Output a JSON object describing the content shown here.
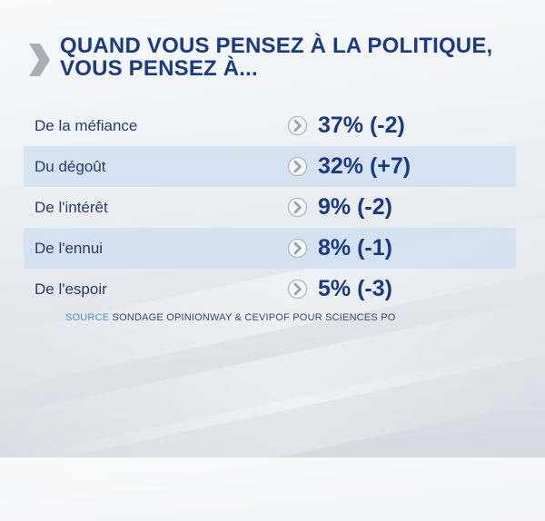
{
  "title": {
    "line1": "QUAND VOUS PENSEZ À LA POLITIQUE,",
    "line2": "VOUS PENSEZ À..."
  },
  "chart_data": {
    "type": "table",
    "title": "QUAND VOUS PENSEZ À LA POLITIQUE, VOUS PENSEZ À...",
    "categories": [
      "De la méfiance",
      "Du dégoût",
      "De l'intérêt",
      "De l'ennui",
      "De l'espoir"
    ],
    "values": [
      37,
      32,
      9,
      8,
      5
    ],
    "changes": [
      -2,
      7,
      -2,
      -1,
      -3
    ],
    "unit": "%",
    "rows": [
      {
        "label": "De la méfiance",
        "display": "37% (-2)"
      },
      {
        "label": "Du dégoût",
        "display": "32% (+7)"
      },
      {
        "label": "De l'intérêt",
        "display": "9% (-2)"
      },
      {
        "label": "De l'ennui",
        "display": "8% (-1)"
      },
      {
        "label": "De l'espoir",
        "display": "5% (-3)"
      }
    ]
  },
  "source": {
    "key": "SOURCE",
    "text": "SONDAGE OPINIONWAY & CEVIPOF POUR SCIENCES PO"
  },
  "colors": {
    "title": "#1a3a85",
    "row_alt": "#cddef0",
    "source_key": "#4a8cd6"
  },
  "icons": {
    "logo": "chevron-logo-icon",
    "row": "chevron-circle-icon"
  }
}
